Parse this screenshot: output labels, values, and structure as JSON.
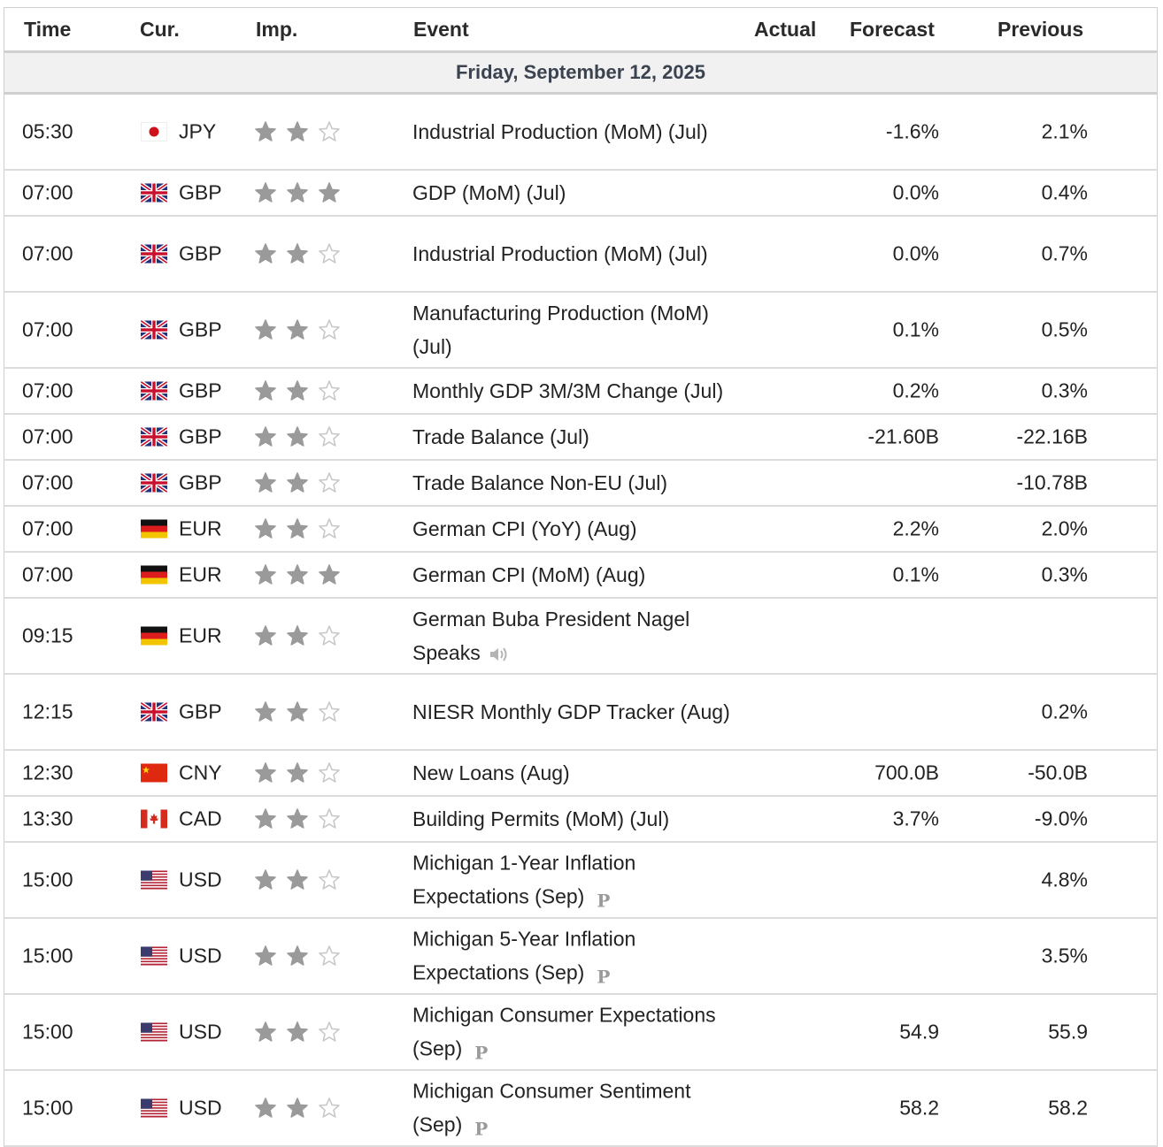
{
  "headers": {
    "time": "Time",
    "currency": "Cur.",
    "importance": "Imp.",
    "event": "Event",
    "actual": "Actual",
    "forecast": "Forecast",
    "previous": "Previous"
  },
  "date_label": "Friday, September 12, 2025",
  "colors": {
    "star_filled": "#9a9a9a",
    "star_empty": "#c8c8c8",
    "date_text": "#3b4350"
  },
  "rows": [
    {
      "time": "05:30",
      "currency": "JPY",
      "flag": "jp",
      "importance": 2,
      "event": "Industrial Production (MoM) (Jul)",
      "actual": "",
      "forecast": "-1.6%",
      "previous": "2.1%",
      "extra": ""
    },
    {
      "time": "07:00",
      "currency": "GBP",
      "flag": "gb",
      "importance": 3,
      "event": "GDP (MoM) (Jul)",
      "actual": "",
      "forecast": "0.0%",
      "previous": "0.4%",
      "extra": ""
    },
    {
      "time": "07:00",
      "currency": "GBP",
      "flag": "gb",
      "importance": 2,
      "event": "Industrial Production (MoM) (Jul)",
      "actual": "",
      "forecast": "0.0%",
      "previous": "0.7%",
      "extra": ""
    },
    {
      "time": "07:00",
      "currency": "GBP",
      "flag": "gb",
      "importance": 2,
      "event": "Manufacturing Production (MoM) (Jul)",
      "actual": "",
      "forecast": "0.1%",
      "previous": "0.5%",
      "extra": ""
    },
    {
      "time": "07:00",
      "currency": "GBP",
      "flag": "gb",
      "importance": 2,
      "event": "Monthly GDP 3M/3M Change (Jul)",
      "actual": "",
      "forecast": "0.2%",
      "previous": "0.3%",
      "extra": ""
    },
    {
      "time": "07:00",
      "currency": "GBP",
      "flag": "gb",
      "importance": 2,
      "event": "Trade Balance (Jul)",
      "actual": "",
      "forecast": "-21.60B",
      "previous": "-22.16B",
      "extra": ""
    },
    {
      "time": "07:00",
      "currency": "GBP",
      "flag": "gb",
      "importance": 2,
      "event": "Trade Balance Non-EU (Jul)",
      "actual": "",
      "forecast": "",
      "previous": "-10.78B",
      "extra": ""
    },
    {
      "time": "07:00",
      "currency": "EUR",
      "flag": "de",
      "importance": 2,
      "event": "German CPI (YoY) (Aug)",
      "actual": "",
      "forecast": "2.2%",
      "previous": "2.0%",
      "extra": ""
    },
    {
      "time": "07:00",
      "currency": "EUR",
      "flag": "de",
      "importance": 3,
      "event": "German CPI (MoM) (Aug)",
      "actual": "",
      "forecast": "0.1%",
      "previous": "0.3%",
      "extra": ""
    },
    {
      "time": "09:15",
      "currency": "EUR",
      "flag": "de",
      "importance": 2,
      "event": "German Buba President Nagel Speaks",
      "actual": "",
      "forecast": "",
      "previous": "",
      "extra": "speaker"
    },
    {
      "time": "12:15",
      "currency": "GBP",
      "flag": "gb",
      "importance": 2,
      "event": "NIESR Monthly GDP Tracker (Aug)",
      "actual": "",
      "forecast": "",
      "previous": "0.2%",
      "extra": ""
    },
    {
      "time": "12:30",
      "currency": "CNY",
      "flag": "cn",
      "importance": 2,
      "event": "New Loans (Aug)",
      "actual": "",
      "forecast": "700.0B",
      "previous": "-50.0B",
      "extra": ""
    },
    {
      "time": "13:30",
      "currency": "CAD",
      "flag": "ca",
      "importance": 2,
      "event": "Building Permits (MoM) (Jul)",
      "actual": "",
      "forecast": "3.7%",
      "previous": "-9.0%",
      "extra": ""
    },
    {
      "time": "15:00",
      "currency": "USD",
      "flag": "us",
      "importance": 2,
      "event": "Michigan 1-Year Inflation Expectations (Sep)",
      "actual": "",
      "forecast": "",
      "previous": "4.8%",
      "extra": "preliminary"
    },
    {
      "time": "15:00",
      "currency": "USD",
      "flag": "us",
      "importance": 2,
      "event": "Michigan 5-Year Inflation Expectations (Sep)",
      "actual": "",
      "forecast": "",
      "previous": "3.5%",
      "extra": "preliminary"
    },
    {
      "time": "15:00",
      "currency": "USD",
      "flag": "us",
      "importance": 2,
      "event": "Michigan Consumer Expectations (Sep)",
      "actual": "",
      "forecast": "54.9",
      "previous": "55.9",
      "extra": "preliminary"
    },
    {
      "time": "15:00",
      "currency": "USD",
      "flag": "us",
      "importance": 2,
      "event": "Michigan Consumer Sentiment (Sep)",
      "actual": "",
      "forecast": "58.2",
      "previous": "58.2",
      "extra": "preliminary"
    }
  ],
  "preliminary_glyph": "P"
}
